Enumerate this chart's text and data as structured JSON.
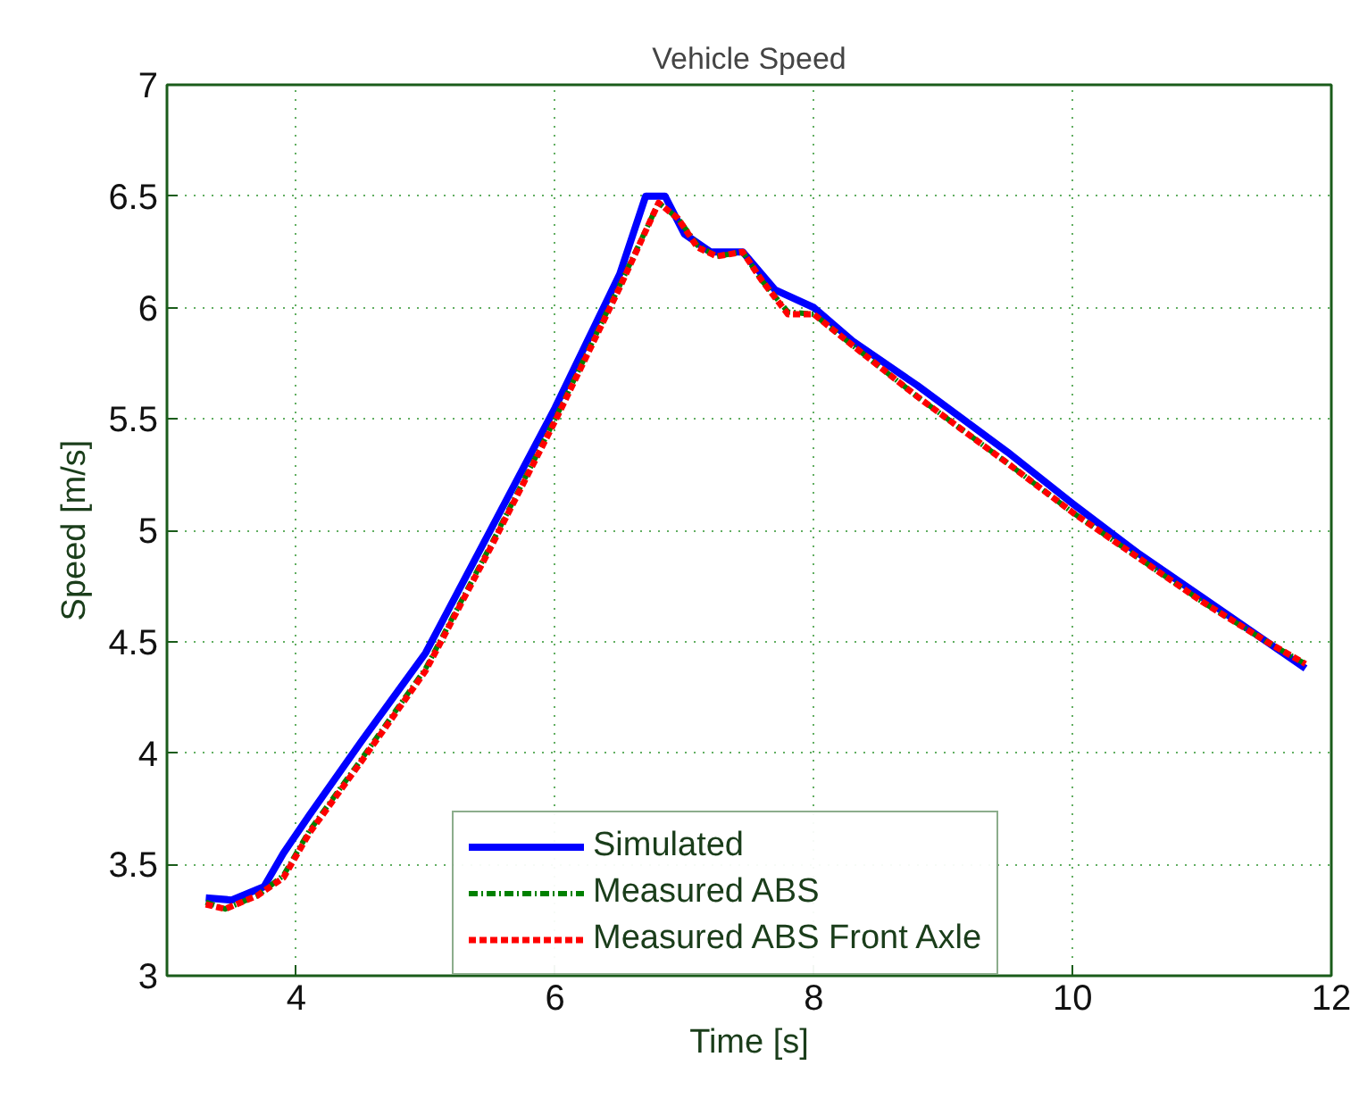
{
  "chart_data": {
    "type": "line",
    "title": "Vehicle Speed",
    "xlabel": "Time [s]",
    "ylabel": "Speed [m/s]",
    "xlim": [
      3,
      12
    ],
    "xticks": [
      4,
      6,
      8,
      10,
      12
    ],
    "ylim": [
      3,
      7
    ],
    "yticks": [
      3,
      3.5,
      4,
      4.5,
      5,
      5.5,
      6,
      6.5,
      7
    ],
    "grid": true,
    "legend": "bottom right",
    "series": [
      {
        "name": "Simulated",
        "color": "#0000ff",
        "line_style": "solid",
        "x": [
          3.3,
          3.5,
          3.75,
          3.9,
          4.1,
          4.5,
          5,
          5.5,
          6,
          6.5,
          6.7,
          6.85,
          7.0,
          7.2,
          7.45,
          7.7,
          8.0,
          8.3,
          8.8,
          9.5,
          10,
          10.5,
          11,
          11.5,
          11.8
        ],
        "values": [
          3.35,
          3.34,
          3.4,
          3.55,
          3.72,
          4.05,
          4.45,
          5.0,
          5.55,
          6.15,
          6.5,
          6.5,
          6.33,
          6.25,
          6.25,
          6.08,
          6.0,
          5.85,
          5.65,
          5.35,
          5.12,
          4.9,
          4.7,
          4.5,
          4.38
        ]
      },
      {
        "name": "Measured ABS",
        "color": "#008000",
        "line_style": "dotted",
        "x": [
          3.3,
          3.45,
          3.7,
          3.9,
          4.1,
          4.5,
          5,
          5.5,
          6,
          6.5,
          6.8,
          6.95,
          7.1,
          7.25,
          7.45,
          7.6,
          7.8,
          8.0,
          8.3,
          8.8,
          9.5,
          10,
          10.5,
          11,
          11.5,
          11.8
        ],
        "values": [
          3.33,
          3.3,
          3.36,
          3.45,
          3.65,
          3.97,
          4.38,
          4.93,
          5.5,
          6.1,
          6.47,
          6.4,
          6.28,
          6.23,
          6.25,
          6.12,
          5.98,
          5.97,
          5.83,
          5.6,
          5.3,
          5.08,
          4.88,
          4.68,
          4.5,
          4.4
        ]
      },
      {
        "name": "Measured ABS Front Axle",
        "color": "#ff0000",
        "line_style": "dashed",
        "x": [
          3.3,
          3.45,
          3.7,
          3.9,
          4.1,
          4.5,
          5,
          5.5,
          6,
          6.5,
          6.8,
          6.95,
          7.1,
          7.25,
          7.45,
          7.6,
          7.8,
          8.0,
          8.3,
          8.8,
          9.5,
          10,
          10.5,
          11,
          11.5,
          11.8
        ],
        "values": [
          3.32,
          3.3,
          3.36,
          3.44,
          3.64,
          3.96,
          4.37,
          4.92,
          5.49,
          6.09,
          6.47,
          6.4,
          6.27,
          6.23,
          6.25,
          6.12,
          5.97,
          5.97,
          5.83,
          5.6,
          5.3,
          5.08,
          4.88,
          4.68,
          4.5,
          4.4
        ]
      }
    ]
  }
}
